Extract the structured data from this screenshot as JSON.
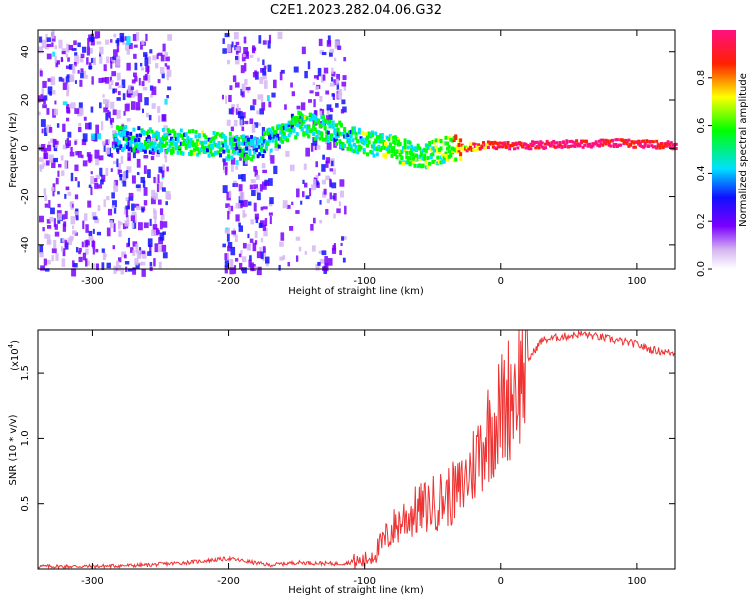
{
  "title": "C2E1.2023.282.04.06.G32",
  "colors": {
    "snr_line": "#ee3333",
    "axis": "#000000"
  },
  "chart_data": [
    {
      "type": "heatmap",
      "xlabel": "Height of straight line (km)",
      "ylabel": "Frequency (Hz)",
      "xlim": [
        -340,
        128
      ],
      "ylim": [
        -50,
        49
      ],
      "xticks": [
        -300,
        -200,
        -100,
        0,
        100
      ],
      "yticks": [
        -40,
        -20,
        0,
        20,
        40
      ],
      "colorbar": {
        "label": "Normalized spectral amplitude",
        "range": [
          0,
          1
        ],
        "ticks": [
          "0.0",
          "0.2",
          "0.4",
          "0.6",
          "0.8"
        ],
        "tick_values": [
          0.0,
          0.2,
          0.4,
          0.6,
          0.8
        ]
      },
      "trace": {
        "description_points": [
          [
            -280,
            4,
            0.35
          ],
          [
            -250,
            3,
            0.4
          ],
          [
            -220,
            2,
            0.45
          ],
          [
            -180,
            0,
            0.35
          ],
          [
            -150,
            10,
            0.45
          ],
          [
            -130,
            8,
            0.4
          ],
          [
            -100,
            2,
            0.45
          ],
          [
            -80,
            0,
            0.5
          ],
          [
            -60,
            -4,
            0.45
          ],
          [
            -40,
            0,
            0.55
          ],
          [
            -30,
            0,
            0.7
          ],
          [
            -10,
            1,
            0.85
          ],
          [
            20,
            1,
            0.95
          ],
          [
            80,
            2,
            0.9
          ],
          [
            128,
            1,
            0.9
          ]
        ]
      }
    },
    {
      "type": "line",
      "xlabel": "Height of straight line (km)",
      "ylabel": "SNR (10 * v/v)",
      "yscale_label": "(x10",
      "yscale_exp": "4",
      "yscale_close": ")",
      "xlim": [
        -340,
        128
      ],
      "ylim": [
        0,
        1.83
      ],
      "xticks": [
        -300,
        -200,
        -100,
        0,
        100
      ],
      "yticks": [
        0.5,
        1.0,
        1.5
      ],
      "ytick_labels": [
        "0.5",
        "1.0",
        "1.5"
      ],
      "series": [
        {
          "x": [
            -340,
            -300,
            -260,
            -230,
            -200,
            -170,
            -150,
            -120,
            -100,
            -90,
            -80,
            -70,
            -60,
            -50,
            -40,
            -30,
            -20,
            -10,
            0,
            10,
            20,
            30,
            40,
            60,
            80,
            100,
            110,
            128
          ],
          "y": [
            0.02,
            0.02,
            0.03,
            0.05,
            0.08,
            0.03,
            0.05,
            0.04,
            0.06,
            0.15,
            0.3,
            0.4,
            0.45,
            0.5,
            0.55,
            0.6,
            0.8,
            1.05,
            1.2,
            1.4,
            1.6,
            1.75,
            1.77,
            1.8,
            1.76,
            1.72,
            1.68,
            1.65
          ]
        }
      ]
    }
  ]
}
